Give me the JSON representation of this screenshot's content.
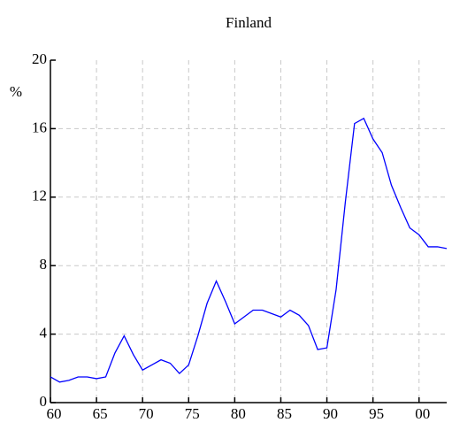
{
  "chart_data": {
    "type": "line",
    "title": "Finland",
    "ylabel": "%",
    "x": [
      1960,
      1961,
      1962,
      1963,
      1964,
      1965,
      1966,
      1967,
      1968,
      1969,
      1970,
      1971,
      1972,
      1973,
      1974,
      1975,
      1976,
      1977,
      1978,
      1979,
      1980,
      1981,
      1982,
      1983,
      1984,
      1985,
      1986,
      1987,
      1988,
      1989,
      1990,
      1991,
      1992,
      1993,
      1994,
      1995,
      1996,
      1997,
      1998,
      1999,
      2000,
      2001,
      2002,
      2003
    ],
    "series": [
      {
        "name": "Finland",
        "color": "#0000ff",
        "values": [
          1.5,
          1.2,
          1.3,
          1.5,
          1.5,
          1.4,
          1.5,
          2.9,
          3.9,
          2.8,
          1.9,
          2.2,
          2.5,
          2.3,
          1.7,
          2.2,
          3.9,
          5.8,
          7.1,
          5.9,
          4.6,
          5.0,
          5.4,
          5.4,
          5.2,
          5.0,
          5.4,
          5.1,
          4.5,
          3.1,
          3.2,
          6.6,
          11.7,
          16.3,
          16.6,
          15.4,
          14.6,
          12.7,
          11.4,
          10.2,
          9.8,
          9.1,
          9.1,
          9.0
        ]
      }
    ],
    "xlim": [
      1960,
      2003
    ],
    "xticks": [
      {
        "value": 1960,
        "label": "60"
      },
      {
        "value": 1965,
        "label": "65"
      },
      {
        "value": 1970,
        "label": "70"
      },
      {
        "value": 1975,
        "label": "75"
      },
      {
        "value": 1980,
        "label": "80"
      },
      {
        "value": 1985,
        "label": "85"
      },
      {
        "value": 1990,
        "label": "90"
      },
      {
        "value": 1995,
        "label": "95"
      },
      {
        "value": 2000,
        "label": "00"
      }
    ],
    "ylim": [
      0,
      20
    ],
    "yticks": [
      0,
      4,
      8,
      12,
      16,
      20
    ],
    "grid": true
  }
}
